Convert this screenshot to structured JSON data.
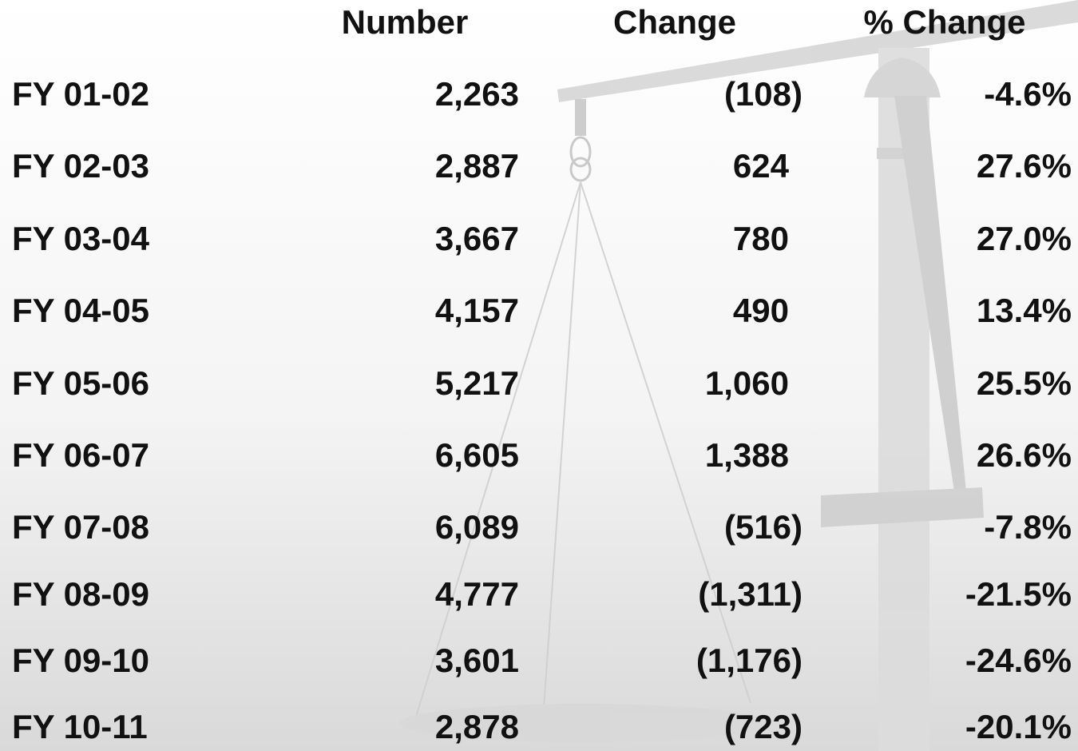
{
  "table": {
    "header": [
      "Number",
      "Change",
      "% Change"
    ],
    "rows": [
      [
        "FY 01-02",
        "2,263",
        "(108)",
        "-4.6%"
      ],
      [
        "FY 02-03",
        "2,887",
        "624",
        "27.6%"
      ],
      [
        "FY 03-04",
        "3,667",
        "780",
        "27.0%"
      ],
      [
        "FY 04-05",
        "4,157",
        "490",
        "13.4%"
      ],
      [
        "FY 05-06",
        "5,217",
        "1,060",
        "25.5%"
      ],
      [
        "FY 06-07",
        "6,605",
        "1,388",
        "26.6%"
      ],
      [
        "FY 07-08",
        "6,089",
        "(516)",
        "-7.8%"
      ],
      [
        "FY 08-09",
        "4,777",
        "(1,311)",
        "-21.5%"
      ],
      [
        "FY 09-10",
        "3,601",
        "(1,176)",
        "-24.6%"
      ],
      [
        "FY 10-11",
        "2,878",
        "(723)",
        "-20.1%"
      ]
    ]
  }
}
